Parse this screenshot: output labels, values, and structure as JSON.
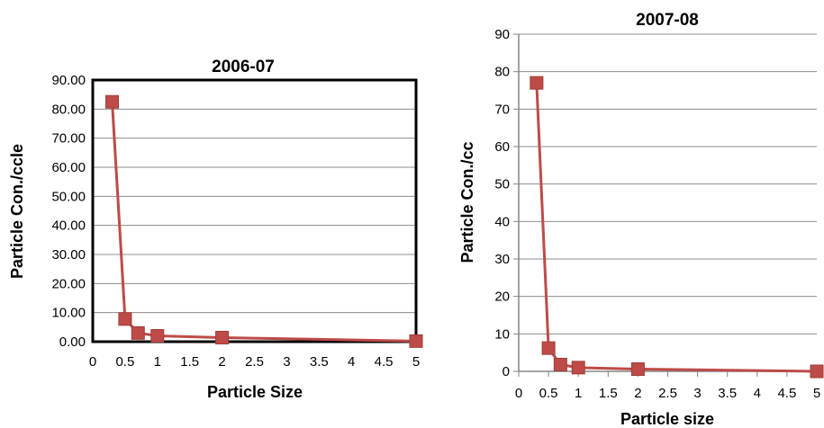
{
  "chart_data": [
    {
      "type": "line",
      "title": "2006-07",
      "xlabel": "Particle Size",
      "ylabel": "Particle Con./ccle",
      "xlim": [
        0,
        5
      ],
      "ylim": [
        0,
        90
      ],
      "x_ticks": [
        "0",
        "0.5",
        "1",
        "1.5",
        "2",
        "2.5",
        "3",
        "3.5",
        "4",
        "4.5",
        "5"
      ],
      "y_ticks": [
        "0.00",
        "10.00",
        "20.00",
        "30.00",
        "40.00",
        "50.00",
        "60.00",
        "70.00",
        "80.00",
        "90.00"
      ],
      "grid": true,
      "series": [
        {
          "x": [
            0.3,
            0.5,
            0.7,
            1.0,
            2.0,
            5.0
          ],
          "y": [
            82.5,
            7.8,
            3.0,
            2.0,
            1.4,
            0.2
          ],
          "color": "#be4b48",
          "marker": "square"
        }
      ]
    },
    {
      "type": "line",
      "title": "2007-08",
      "xlabel": "Particle size",
      "ylabel": "Particle Con./cc",
      "xlim": [
        0,
        5
      ],
      "ylim": [
        0,
        90
      ],
      "x_ticks": [
        "0",
        "0.5",
        "1",
        "1.5",
        "2",
        "2.5",
        "3",
        "3.5",
        "4",
        "4.5",
        "5"
      ],
      "y_ticks": [
        "0",
        "10",
        "20",
        "30",
        "40",
        "50",
        "60",
        "70",
        "80",
        "90"
      ],
      "grid": true,
      "series": [
        {
          "x": [
            0.3,
            0.5,
            0.7,
            1.0,
            2.0,
            5.0
          ],
          "y": [
            77.0,
            6.2,
            1.8,
            1.0,
            0.6,
            0.0
          ],
          "color": "#be4b48",
          "marker": "square"
        }
      ]
    }
  ]
}
